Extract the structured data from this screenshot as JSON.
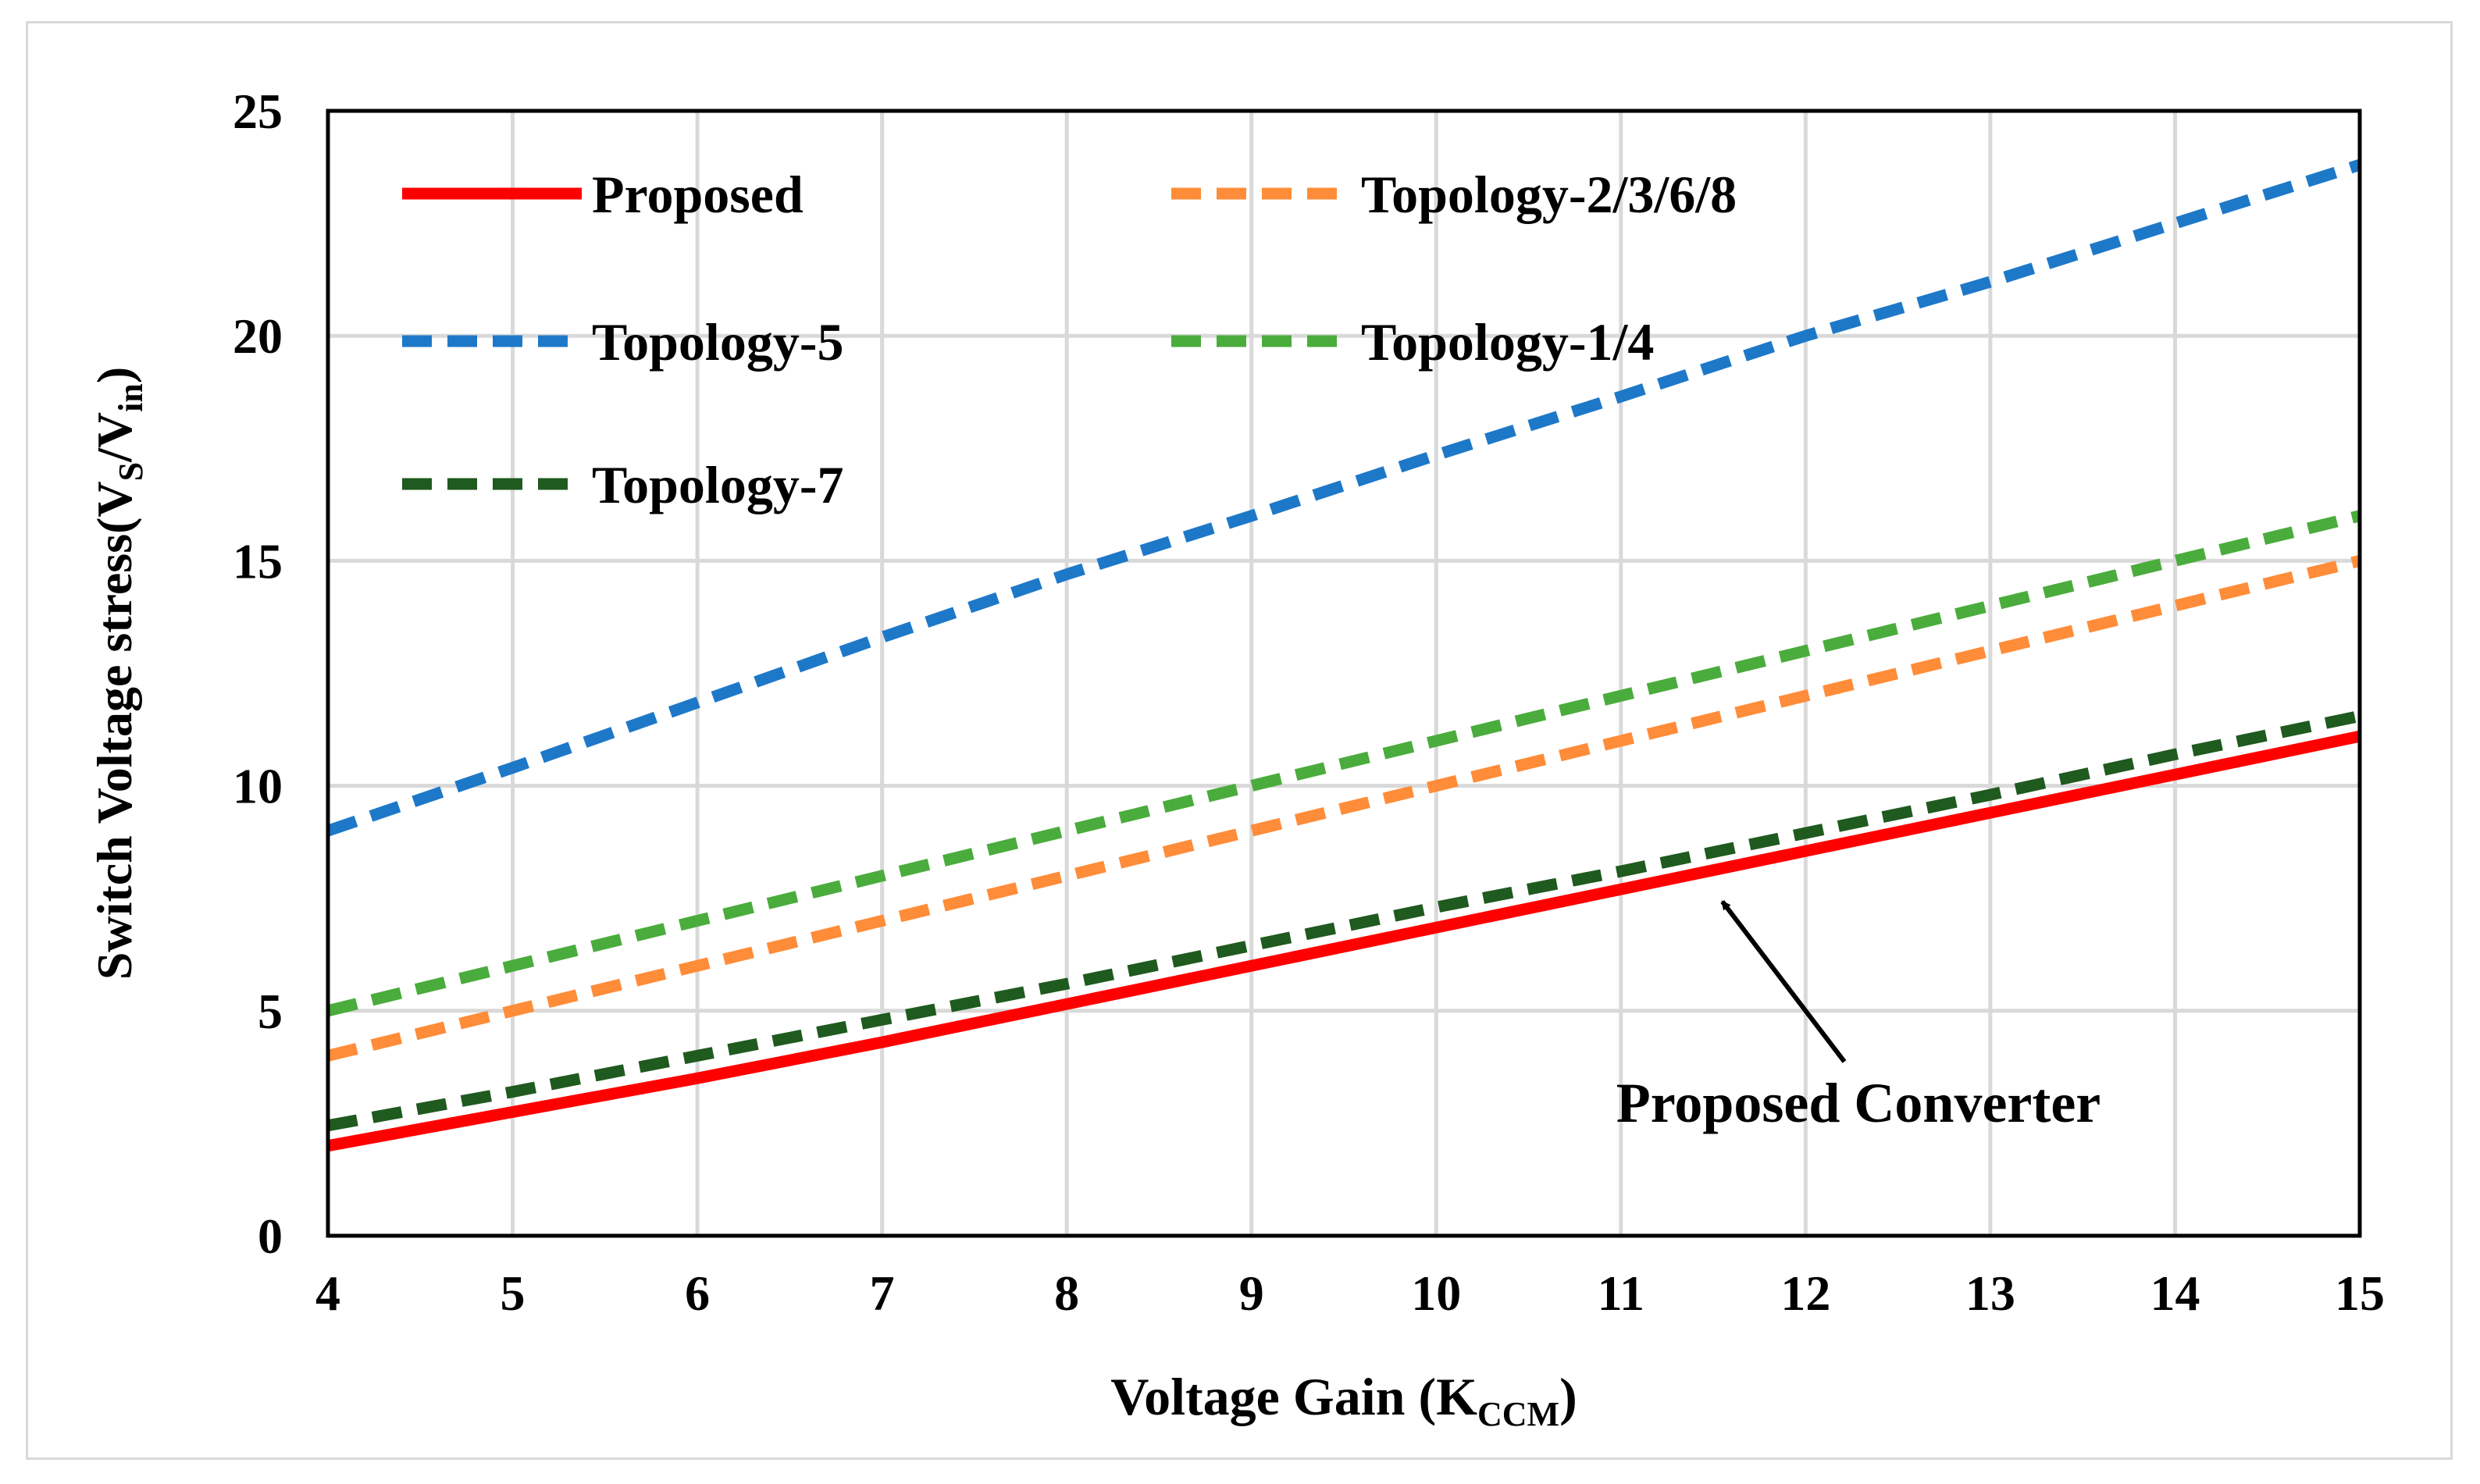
{
  "chart_data": {
    "type": "line",
    "title": "",
    "xlabel": {
      "main": "Voltage Gain (K",
      "sub": "CCM",
      "close": ")"
    },
    "ylabel": {
      "prefix": "Switch Voltage stress(V",
      "sub1": "S",
      "mid": "/V",
      "sub2": "in",
      "close": ")"
    },
    "xlim": [
      4,
      15
    ],
    "ylim": [
      0,
      25
    ],
    "xticks": [
      "4",
      "5",
      "6",
      "7",
      "8",
      "9",
      "10",
      "11",
      "12",
      "13",
      "14",
      "15"
    ],
    "yticks": [
      "0",
      "5",
      "10",
      "15",
      "20",
      "25"
    ],
    "grid": true,
    "legend_position": "top-left",
    "series": [
      {
        "name": "Proposed",
        "color": "#ff0000",
        "dash": "solid",
        "x": [
          4,
          5,
          6,
          7,
          8,
          9,
          10,
          11,
          12,
          13,
          14,
          15
        ],
        "y": [
          2.0,
          2.75,
          3.5,
          4.3,
          5.15,
          6.0,
          6.85,
          7.7,
          8.55,
          9.4,
          10.25,
          11.1
        ]
      },
      {
        "name": "Topology-2/3/6/8",
        "color": "#ff8c38",
        "dash": "dashed",
        "x": [
          4,
          5,
          6,
          7,
          8,
          9,
          10,
          11,
          12,
          13,
          14,
          15
        ],
        "y": [
          4,
          5,
          6,
          7,
          8,
          9,
          10,
          11,
          12,
          13,
          14,
          15
        ]
      },
      {
        "name": "Topology-5",
        "color": "#1e78c8",
        "dash": "dashed",
        "x": [
          4,
          5,
          6,
          7,
          8,
          9,
          10,
          11,
          12,
          13,
          14,
          15
        ],
        "y": [
          9.0,
          10.4,
          11.85,
          13.3,
          14.7,
          16.0,
          17.35,
          18.65,
          20.0,
          21.2,
          22.5,
          23.8
        ]
      },
      {
        "name": "Topology-1/4",
        "color": "#4aac3c",
        "dash": "dashed",
        "x": [
          4,
          5,
          6,
          7,
          8,
          9,
          10,
          11,
          12,
          13,
          14,
          15
        ],
        "y": [
          5,
          6,
          7,
          8,
          9,
          10,
          11,
          12,
          13,
          14,
          15,
          16
        ]
      },
      {
        "name": "Topology-7",
        "color": "#1f5a1f",
        "dash": "dashed",
        "x": [
          4,
          5,
          6,
          7,
          8,
          9,
          10,
          11,
          12,
          13,
          14,
          15
        ],
        "y": [
          2.45,
          3.2,
          4.0,
          4.8,
          5.6,
          6.45,
          7.3,
          8.1,
          8.95,
          9.8,
          10.7,
          11.55
        ]
      }
    ],
    "annotations": [
      {
        "text": "Proposed Converter",
        "points_to_x": 11.6,
        "points_to_y": 7.6
      }
    ]
  }
}
